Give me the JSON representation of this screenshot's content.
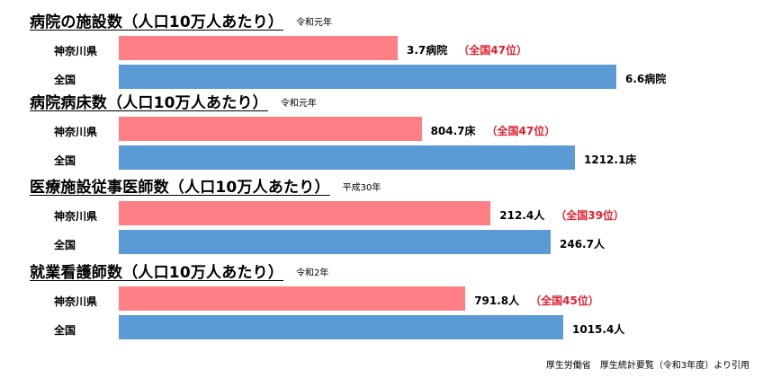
{
  "row_labels": {
    "pref": "神奈川県",
    "nat": "全国"
  },
  "colors": {
    "pref": "#ff7f86",
    "nat": "#5b9bd5",
    "rank": "#e0202f"
  },
  "chart_data": [
    {
      "type": "bar",
      "title": "病院の施設数（人口10万人あたり）",
      "era": "令和元年",
      "categories": [
        "神奈川県",
        "全国"
      ],
      "values": [
        3.7,
        6.6
      ],
      "unit": "病院",
      "value_labels": [
        "3.7病院",
        "6.6病院"
      ],
      "rank_label": "（全国47位）"
    },
    {
      "type": "bar",
      "title": "病院病床数（人口10万人あたり）",
      "era": "令和元年",
      "categories": [
        "神奈川県",
        "全国"
      ],
      "values": [
        804.7,
        1212.1
      ],
      "unit": "床",
      "value_labels": [
        "804.7床",
        "1212.1床"
      ],
      "rank_label": "（全国47位）"
    },
    {
      "type": "bar",
      "title": "医療施設従事医師数（人口10万人あたり）",
      "era": "平成30年",
      "categories": [
        "神奈川県",
        "全国"
      ],
      "values": [
        212.4,
        246.7
      ],
      "unit": "人",
      "value_labels": [
        "212.4人",
        "246.7人"
      ],
      "rank_label": "（全国39位）"
    },
    {
      "type": "bar",
      "title": "就業看護師数（人口10万人あたり）",
      "era": "令和2年",
      "categories": [
        "神奈川県",
        "全国"
      ],
      "values": [
        791.8,
        1015.4
      ],
      "unit": "人",
      "value_labels": [
        "791.8人",
        "1015.4人"
      ],
      "rank_label": "（全国45位）"
    }
  ],
  "source": "厚生労働省　厚生統計要覧（令和3年度）より引用"
}
